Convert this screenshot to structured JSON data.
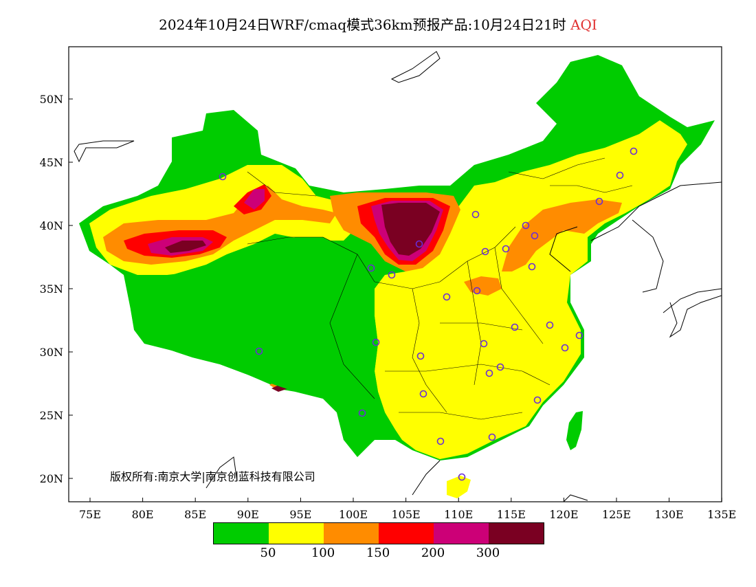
{
  "title": {
    "main": "2024年10月24日WRF/cmaq模式36km预报产品:10月24日21时",
    "variable": "AQI",
    "variable_color": "#e03030"
  },
  "axes": {
    "lat_labels": [
      "50N",
      "45N",
      "40N",
      "35N",
      "30N",
      "25N",
      "20N"
    ],
    "lon_labels": [
      "75E",
      "80E",
      "85E",
      "90E",
      "95E",
      "100E",
      "105E",
      "110E",
      "115E",
      "120E",
      "125E",
      "130E",
      "135E"
    ],
    "lon_range": [
      73,
      135
    ],
    "lat_range": [
      18,
      54
    ]
  },
  "copyright": "版权所有:南京大学|南京创蓝科技有限公司",
  "legend": {
    "colors": [
      "#00cc00",
      "#ffff00",
      "#ff8c00",
      "#ff0000",
      "#cc0077",
      "#7a0022"
    ],
    "labels": [
      "50",
      "100",
      "150",
      "200",
      "300"
    ]
  },
  "colors": {
    "good": "#00cc00",
    "moderate": "#ffff00",
    "sensitive": "#ff8c00",
    "unhealthy": "#ff0000",
    "very_unhealthy": "#cc0077",
    "hazardous": "#7a0022",
    "station_marker": "#6a2cd6"
  }
}
